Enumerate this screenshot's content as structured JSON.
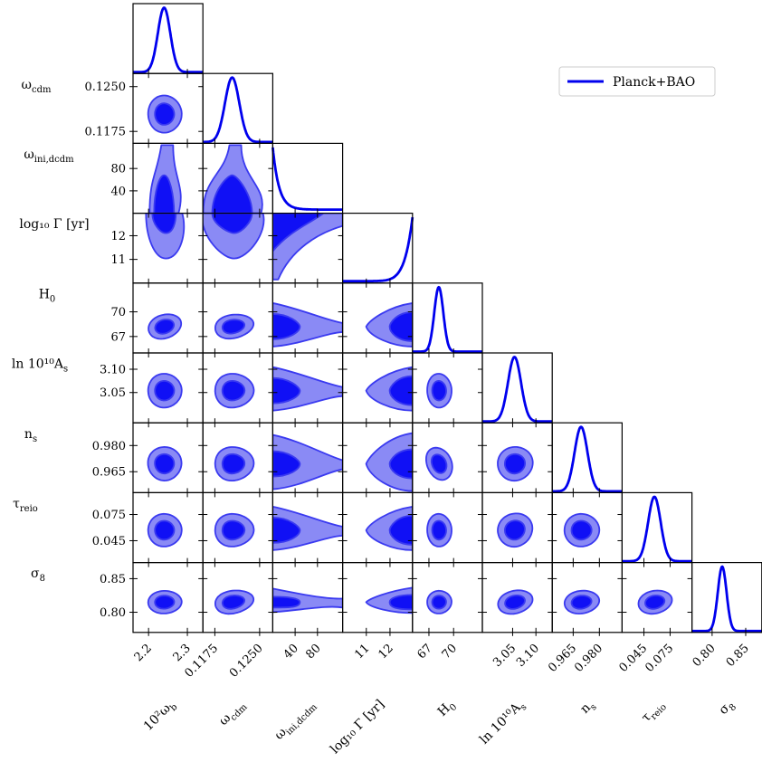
{
  "chart_data": {
    "type": "corner",
    "title": "",
    "grid": false,
    "legend": {
      "position": "top-right",
      "entries": [
        {
          "label": "Planck+BAO",
          "color": "#0000ee"
        }
      ]
    },
    "colors": {
      "line": "#0000ee",
      "contour_outer": "#8a8af5",
      "contour_inner": "#1010f5",
      "contour_edge": "#3a3af0",
      "frame": "#000000"
    },
    "parameters": [
      {
        "key": "omega_b",
        "ylabel": "",
        "xlabel_main": "10²ω",
        "xlabel_sub": "b",
        "range": [
          2.16,
          2.34
        ],
        "ticks": [
          2.2,
          2.3
        ],
        "tick_labels": [
          "2.2",
          "2.3"
        ],
        "best": 2.24,
        "sigma": 0.016,
        "marginal": "gaussian"
      },
      {
        "key": "omega_cdm",
        "ylabel": "ω",
        "ylabel_sub": "cdm",
        "xlabel_main": "ω",
        "xlabel_sub": "cdm",
        "range": [
          0.1155,
          0.1272
        ],
        "ticks": [
          0.1175,
          0.125
        ],
        "tick_labels": [
          "0.1175",
          "0.1250"
        ],
        "best": 0.1204,
        "sigma": 0.0012,
        "marginal": "gaussian"
      },
      {
        "key": "omega_ini_dcdm",
        "ylabel": "ω",
        "ylabel_sub": "ini,dcdm",
        "xlabel_main": "ω",
        "xlabel_sub": "ini,dcdm",
        "range": [
          0,
          125
        ],
        "ticks": [
          40,
          80
        ],
        "tick_labels": [
          "40",
          "80"
        ],
        "best": 0,
        "sigma": 0,
        "marginal": "decaying"
      },
      {
        "key": "log10_gamma",
        "ylabel": "log₁₀ Γ [yr]",
        "xlabel_main": "log₁₀ Γ [yr]",
        "xlabel_sub": "",
        "range": [
          10.0,
          12.95
        ],
        "ticks": [
          11,
          12
        ],
        "tick_labels": [
          "11",
          "12"
        ],
        "best": 12.95,
        "sigma": 0,
        "marginal": "rising"
      },
      {
        "key": "H0",
        "ylabel": "H",
        "ylabel_sub": "0",
        "xlabel_main": "H",
        "xlabel_sub": "0",
        "range": [
          65.0,
          73.5
        ],
        "ticks": [
          67,
          70
        ],
        "tick_labels": [
          "67",
          "70"
        ],
        "best": 68.2,
        "sigma": 0.55,
        "marginal": "gaussian"
      },
      {
        "key": "ln10As",
        "ylabel": "ln 10¹⁰A",
        "ylabel_sub": "s",
        "xlabel_main": "ln 10¹⁰A",
        "xlabel_sub": "s",
        "range": [
          2.985,
          3.135
        ],
        "ticks": [
          3.05,
          3.1
        ],
        "tick_labels": [
          "3.05",
          "3.10"
        ],
        "best": 3.054,
        "sigma": 0.014,
        "marginal": "gaussian"
      },
      {
        "key": "n_s",
        "ylabel": "n",
        "ylabel_sub": "s",
        "xlabel_main": "n",
        "xlabel_sub": "s",
        "range": [
          0.953,
          0.993
        ],
        "ticks": [
          0.965,
          0.98
        ],
        "tick_labels": [
          "0.965",
          "0.980"
        ],
        "best": 0.9695,
        "sigma": 0.0037,
        "marginal": "gaussian"
      },
      {
        "key": "tau_reio",
        "ylabel": "τ",
        "ylabel_sub": "reio",
        "xlabel_main": "τ",
        "xlabel_sub": "reio",
        "range": [
          0.02,
          0.1
        ],
        "ticks": [
          0.045,
          0.075
        ],
        "tick_labels": [
          "0.045",
          "0.075"
        ],
        "best": 0.057,
        "sigma": 0.0072,
        "marginal": "gaussian"
      },
      {
        "key": "sigma8",
        "ylabel": "σ",
        "ylabel_sub": "8",
        "xlabel_main": "σ",
        "xlabel_sub": "8",
        "range": [
          0.77,
          0.874
        ],
        "ticks": [
          0.8,
          0.85
        ],
        "tick_labels": [
          "0.80",
          "0.85"
        ],
        "best": 0.815,
        "sigma": 0.0065,
        "marginal": "gaussian"
      }
    ]
  }
}
